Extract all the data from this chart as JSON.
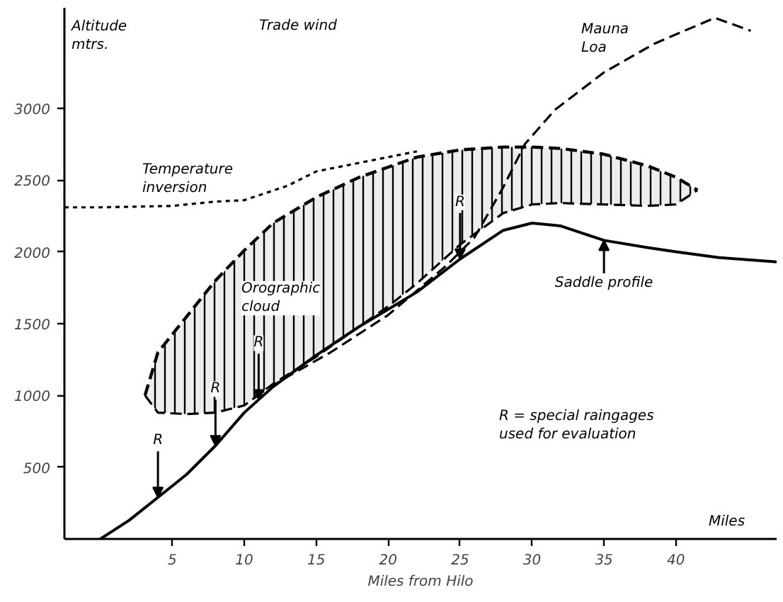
{
  "chart_data": {
    "type": "line",
    "xlabel": "Miles from Hilo",
    "ylabel": "Altitude mtrs.",
    "xlim": [
      -2.5,
      47
    ],
    "ylim": [
      0,
      3700
    ],
    "xticks": [
      5,
      10,
      15,
      20,
      25,
      30,
      35,
      40
    ],
    "yticks": [
      500,
      1000,
      1500,
      2000,
      2500,
      3000
    ],
    "grid": false,
    "series": [
      {
        "type": "line",
        "color": "#000000",
        "line_style": "dashed",
        "x": [
          3.1,
          4,
          6,
          8,
          10,
          12,
          15,
          18,
          20,
          22,
          25,
          28,
          30,
          32,
          35,
          38,
          40,
          41.5
        ],
        "values": [
          1000,
          1300,
          1550,
          1800,
          2010,
          2200,
          2380,
          2520,
          2590,
          2660,
          2710,
          2730,
          2730,
          2720,
          2680,
          2600,
          2520,
          2430
        ],
        "lower": [
          1000,
          880,
          870,
          880,
          930,
          1080,
          1270,
          1480,
          1620,
          1780,
          2050,
          2270,
          2330,
          2340,
          2330,
          2320,
          2330,
          2430
        ],
        "upper": [
          1000,
          1300,
          1550,
          1800,
          2010,
          2200,
          2380,
          2520,
          2590,
          2660,
          2710,
          2730,
          2730,
          2720,
          2680,
          2600,
          2520,
          2430
        ]
      },
      {
        "color": "#000000",
        "line_style": "dashed",
        "x": [
          3.1,
          4,
          6,
          8,
          10,
          12,
          15,
          18,
          20,
          22,
          25,
          28,
          30,
          32,
          35,
          38,
          40,
          41.5
        ],
        "values": [
          1000,
          880,
          870,
          880,
          930,
          1080,
          1270,
          1480,
          1620,
          1780,
          2050,
          2270,
          2330,
          2340,
          2330,
          2320,
          2330,
          2430
        ]
      },
      {
        "color": "#000000",
        "line_style": "dotted",
        "x": [
          -2.5,
          0,
          5,
          8,
          10,
          13,
          15,
          18,
          20,
          22
        ],
        "values": [
          2310,
          2310,
          2320,
          2350,
          2360,
          2460,
          2560,
          2620,
          2660,
          2700
        ]
      },
      {
        "color": "#000000",
        "line_style": "dashed",
        "x": [
          10.7,
          13,
          16,
          20,
          24,
          26,
          28,
          29.5,
          31.6,
          35,
          38.5,
          42.7,
          45.2
        ],
        "values": [
          990,
          1130,
          1300,
          1560,
          1900,
          2100,
          2450,
          2750,
          2990,
          3250,
          3450,
          3630,
          3540
        ]
      },
      {
        "color": "#000000",
        "line_style": "solid",
        "x": [
          0,
          2,
          4,
          6,
          8,
          10,
          12,
          15,
          18,
          20,
          22,
          25,
          28,
          30,
          32,
          35,
          38,
          40,
          43,
          47
        ],
        "values": [
          0,
          130,
          290,
          450,
          650,
          880,
          1060,
          1280,
          1480,
          1600,
          1720,
          1950,
          2150,
          2200,
          2180,
          2080,
          2030,
          2000,
          1960,
          1930
        ]
      }
    ],
    "annotations": [
      {
        "text": "R",
        "x": 4,
        "y": 290
      },
      {
        "text": "R",
        "x": 8,
        "y": 650
      },
      {
        "text": "R",
        "x": 11,
        "y": 970
      },
      {
        "text": "R",
        "x": 25,
        "y": 1950
      },
      {
        "text": "Saddle profile",
        "x": 35,
        "y": 2080
      },
      "Temperature\ninversion",
      "Orographic\ncloud",
      "Mauna\nLoa",
      "Trade wind",
      "R  =  special raingages\n         used for evaluation",
      "Miles"
    ]
  }
}
